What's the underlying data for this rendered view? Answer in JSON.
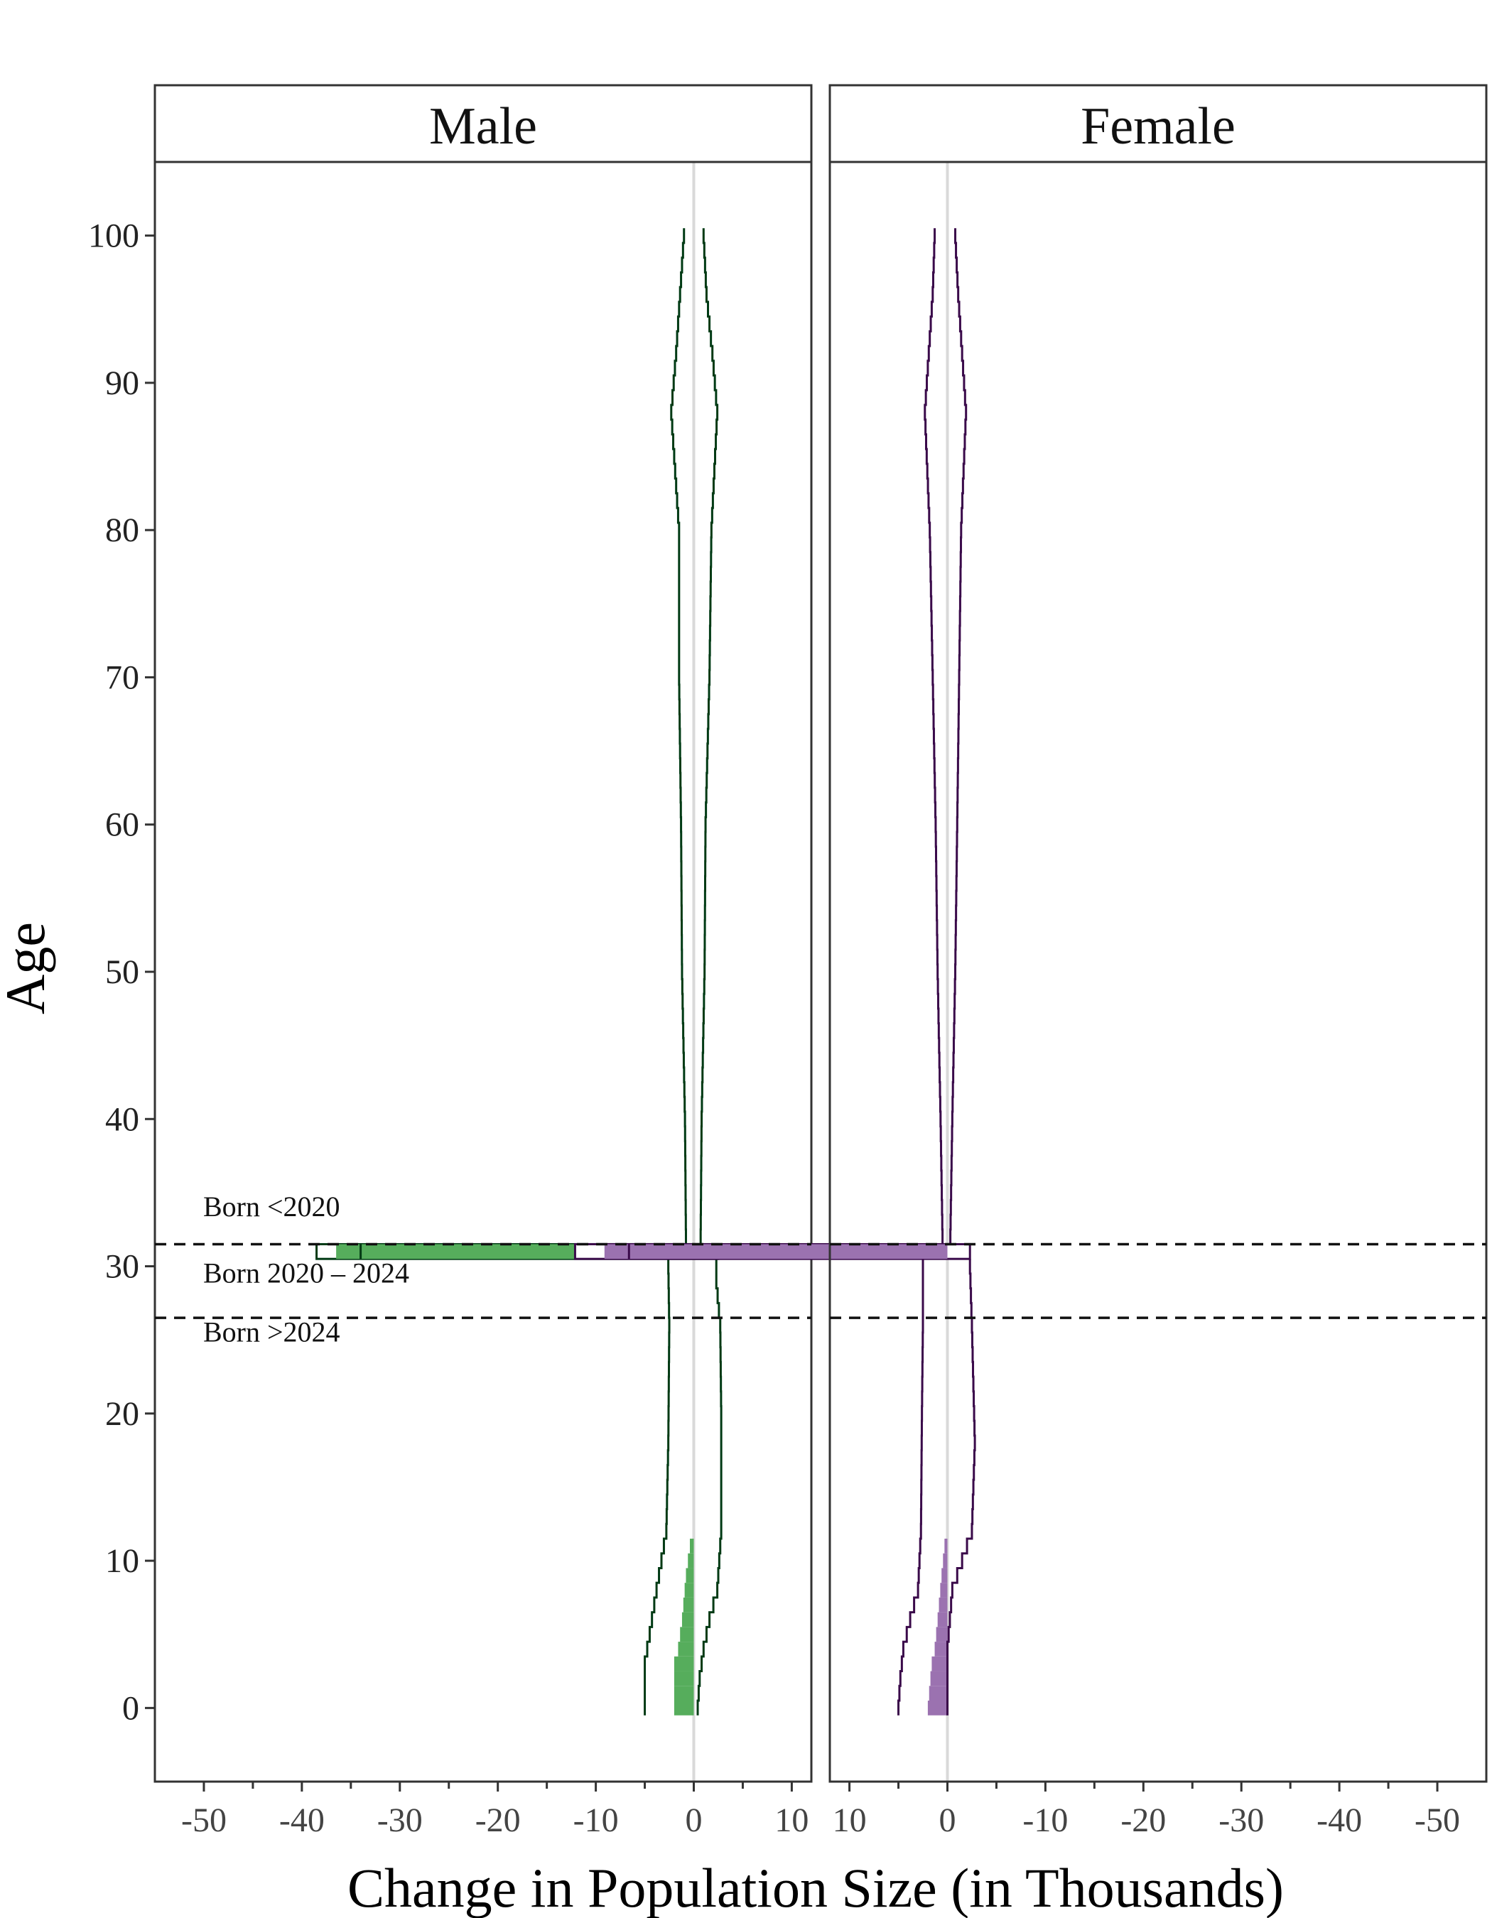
{
  "chart_data": {
    "type": "area",
    "ylabel": "Age",
    "xlabel": "Change in Population Size (in Thousands)",
    "ylim": [
      -5,
      105
    ],
    "yticks": [
      0,
      10,
      20,
      30,
      40,
      50,
      60,
      70,
      80,
      90,
      100
    ],
    "grid": false,
    "facets": [
      {
        "name": "Male",
        "color": "#56ad5c",
        "outline_color": "#003a14",
        "xlim": [
          -55,
          12
        ],
        "reversed": false,
        "xticks": [
          -50,
          -40,
          -30,
          -20,
          -10,
          0,
          10
        ],
        "xtick_labels": [
          "-50",
          "-40",
          "-30",
          "-20",
          "-10",
          "0",
          "10"
        ]
      },
      {
        "name": "Female",
        "color": "#9b72b0",
        "outline_color": "#3a0a4a",
        "xlim": [
          -55,
          12
        ],
        "reversed": true,
        "xticks": [
          10,
          0,
          -10,
          -20,
          -30,
          -40,
          -50
        ],
        "xtick_labels": [
          "10",
          "0",
          "-10",
          "-20",
          "-30",
          "-40",
          "-50"
        ]
      }
    ],
    "age_groups": {
      "boundaries": [
        31.5,
        26.5
      ],
      "labels": [
        "Born <2020",
        "Born 2020 – 2024",
        "Born >2024"
      ]
    },
    "series": [
      {
        "name": "Male",
        "central": [
          [
            0,
            -2.0
          ],
          [
            3,
            -2.0
          ],
          [
            4,
            -1.6
          ],
          [
            6,
            -1.2
          ],
          [
            9,
            -0.8
          ],
          [
            11,
            -0.4
          ],
          [
            15,
            0
          ],
          [
            31,
            0
          ],
          [
            31.5,
            -34
          ],
          [
            32,
            0
          ],
          [
            100,
            0
          ]
        ],
        "lower": [
          [
            0,
            -5.0
          ],
          [
            3,
            -5.0
          ],
          [
            5,
            -4.5
          ],
          [
            8,
            -3.8
          ],
          [
            12,
            -2.8
          ],
          [
            18,
            -2.6
          ],
          [
            26,
            -2.5
          ],
          [
            30,
            -2.6
          ],
          [
            31,
            -2.6
          ],
          [
            31.5,
            -38.5
          ],
          [
            32,
            -0.8
          ],
          [
            40,
            -0.9
          ],
          [
            50,
            -1.2
          ],
          [
            60,
            -1.3
          ],
          [
            70,
            -1.5
          ],
          [
            80,
            -1.5
          ],
          [
            88,
            -2.3
          ],
          [
            92,
            -1.8
          ],
          [
            96,
            -1.4
          ],
          [
            100,
            -1.0
          ]
        ],
        "upper": [
          [
            0,
            0.4
          ],
          [
            2,
            0.6
          ],
          [
            4,
            1.0
          ],
          [
            6,
            1.6
          ],
          [
            8,
            2.4
          ],
          [
            12,
            2.8
          ],
          [
            20,
            2.8
          ],
          [
            26,
            2.7
          ],
          [
            29,
            2.3
          ],
          [
            31,
            2.3
          ],
          [
            31.5,
            0.2
          ],
          [
            32,
            0.7
          ],
          [
            40,
            0.8
          ],
          [
            50,
            1.1
          ],
          [
            60,
            1.2
          ],
          [
            70,
            1.6
          ],
          [
            80,
            1.8
          ],
          [
            88,
            2.4
          ],
          [
            92,
            1.9
          ],
          [
            96,
            1.3
          ],
          [
            100,
            1.0
          ]
        ],
        "cohort_shaded": [
          [
            0,
            -2.0
          ],
          [
            3,
            -2.0
          ],
          [
            4,
            -1.6
          ],
          [
            6,
            -1.2
          ],
          [
            9,
            -0.8
          ],
          [
            11,
            -0.4
          ]
        ],
        "bar_at_31": {
          "central": -34,
          "shaded_from": -36.5,
          "shaded_to": 0,
          "lower": -38.5,
          "upper": 2.5
        }
      },
      {
        "name": "Female",
        "central": [
          [
            0,
            2.0
          ],
          [
            3,
            1.6
          ],
          [
            4,
            1.3
          ],
          [
            6,
            1.0
          ],
          [
            9,
            0.6
          ],
          [
            11,
            0.3
          ],
          [
            15,
            0
          ],
          [
            31,
            0
          ],
          [
            31.5,
            32.5
          ],
          [
            32,
            0
          ],
          [
            100,
            0
          ]
        ],
        "lower": [
          [
            0,
            -0.0
          ],
          [
            4,
            0.0
          ],
          [
            8,
            -0.5
          ],
          [
            12,
            -2.5
          ],
          [
            18,
            -2.8
          ],
          [
            26,
            -2.5
          ],
          [
            30,
            -2.3
          ],
          [
            31,
            -2.3
          ],
          [
            31.5,
            -0.3
          ],
          [
            32,
            -0.3
          ],
          [
            40,
            -0.5
          ],
          [
            50,
            -0.8
          ],
          [
            60,
            -1.0
          ],
          [
            70,
            -1.2
          ],
          [
            80,
            -1.4
          ],
          [
            88,
            -1.9
          ],
          [
            92,
            -1.5
          ],
          [
            96,
            -1.1
          ],
          [
            100,
            -0.8
          ]
        ],
        "upper": [
          [
            0,
            5.0
          ],
          [
            2,
            4.8
          ],
          [
            4,
            4.5
          ],
          [
            6,
            3.8
          ],
          [
            8,
            3.0
          ],
          [
            12,
            2.7
          ],
          [
            20,
            2.6
          ],
          [
            26,
            2.5
          ],
          [
            29,
            2.5
          ],
          [
            31,
            2.5
          ],
          [
            31.5,
            38
          ],
          [
            32,
            0.5
          ],
          [
            40,
            0.7
          ],
          [
            50,
            1.0
          ],
          [
            60,
            1.2
          ],
          [
            70,
            1.5
          ],
          [
            80,
            1.8
          ],
          [
            88,
            2.3
          ],
          [
            92,
            1.9
          ],
          [
            96,
            1.5
          ],
          [
            100,
            1.3
          ]
        ],
        "cohort_shaded": [
          [
            0,
            2.0
          ],
          [
            3,
            1.6
          ],
          [
            4,
            1.3
          ],
          [
            6,
            1.0
          ],
          [
            9,
            0.6
          ],
          [
            11,
            0.3
          ]
        ],
        "bar_at_31": {
          "central": 32.5,
          "shaded_from": 0,
          "shaded_to": 35,
          "lower": -2.3,
          "upper": 38
        }
      }
    ]
  }
}
